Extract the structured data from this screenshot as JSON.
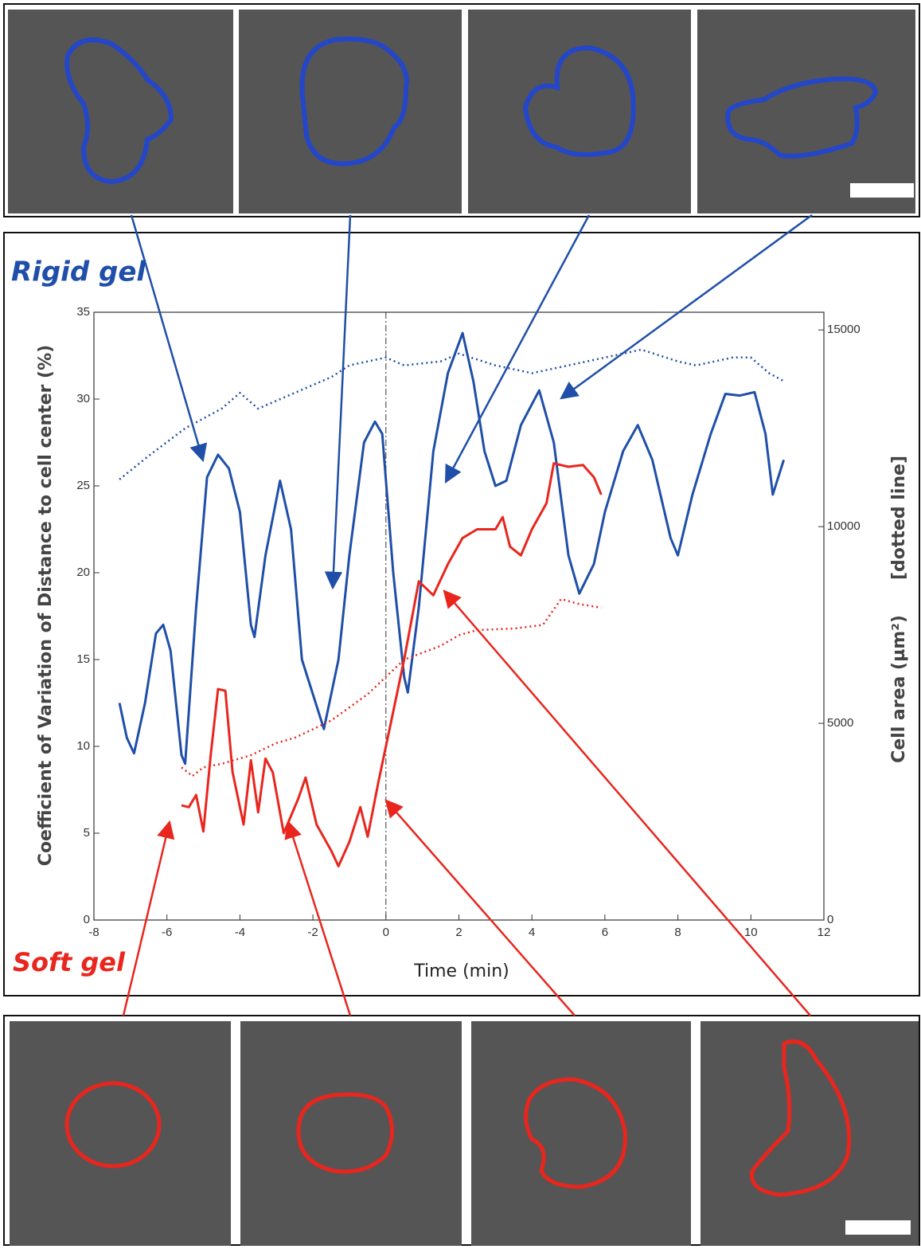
{
  "chart_data": {
    "type": "line",
    "title": "Rigid gel",
    "subtitle": "Soft gel",
    "xlabel": "Time (min)",
    "ylabel": "Coefficient of Variation of Distance to cell center (%)",
    "y2label": "Cell area (µm²)",
    "y2label_note": "[dotted line]",
    "xlim": [
      -8,
      12
    ],
    "xticks": [
      -8,
      -6,
      -4,
      -2,
      0,
      2,
      4,
      6,
      8,
      10,
      12
    ],
    "ylim": [
      0,
      35
    ],
    "yticks": [
      0,
      5,
      10,
      15,
      20,
      25,
      30,
      35
    ],
    "y2lim": [
      0,
      15450
    ],
    "y2ticks": [
      0,
      5000,
      10000,
      15000
    ],
    "reference_x": 0,
    "series": [
      {
        "name": "Rigid gel",
        "color": "#1f4fa8",
        "line_style": "solid",
        "x": [
          -7.3,
          -7.1,
          -6.9,
          -6.6,
          -6.3,
          -6.1,
          -5.9,
          -5.6,
          -5.5,
          -5.2,
          -4.9,
          -4.6,
          -4.3,
          -4.0,
          -3.7,
          -3.6,
          -3.3,
          -2.9,
          -2.6,
          -2.3,
          -1.7,
          -1.3,
          -1.0,
          -0.6,
          -0.3,
          -0.1,
          0.2,
          0.5,
          0.6,
          0.9,
          1.3,
          1.7,
          2.1,
          2.4,
          2.7,
          3.0,
          3.3,
          3.7,
          4.2,
          4.6,
          5.0,
          5.3,
          5.7,
          6.0,
          6.5,
          6.9,
          7.3,
          7.8,
          8.0,
          8.4,
          8.9,
          9.3,
          9.7,
          10.1,
          10.4,
          10.6,
          10.9
        ],
        "values": [
          12.5,
          10.5,
          9.6,
          12.5,
          16.5,
          17,
          15.5,
          9.5,
          9,
          18,
          25.5,
          26.8,
          26,
          23.5,
          17,
          16.3,
          21,
          25.3,
          22.5,
          15,
          11,
          15,
          21,
          27.5,
          28.7,
          28,
          20,
          14,
          13.1,
          18,
          27,
          31.5,
          33.8,
          31,
          27,
          25,
          25.3,
          28.5,
          30.5,
          27.5,
          21,
          18.8,
          20.5,
          23.5,
          27,
          28.5,
          26.5,
          22,
          21,
          24.5,
          28,
          30.3,
          30.2,
          30.4,
          28,
          24.5,
          26.5
        ]
      },
      {
        "name": "Rigid gel",
        "color": "#1f4fa8",
        "line_style": "dotted",
        "axis": "y2",
        "x": [
          -7.3,
          -6.5,
          -5.5,
          -4.5,
          -4.0,
          -3.5,
          -2.5,
          -1.5,
          -1.0,
          0,
          0.5,
          1.5,
          2.0,
          3.0,
          4.0,
          5.0,
          6.5,
          7.0,
          8.0,
          8.5,
          9.5,
          10.0,
          10.5,
          10.9
        ],
        "values": [
          11200,
          11800,
          12500,
          13000,
          13400,
          13000,
          13400,
          13800,
          14100,
          14300,
          14100,
          14200,
          14400,
          14100,
          13900,
          14100,
          14400,
          14500,
          14200,
          14100,
          14300,
          14300,
          13900,
          13700
        ]
      },
      {
        "name": "Soft gel",
        "color": "#e8261e",
        "line_style": "solid",
        "x": [
          -5.6,
          -5.4,
          -5.2,
          -5.0,
          -4.8,
          -4.6,
          -4.4,
          -4.2,
          -3.9,
          -3.7,
          -3.5,
          -3.3,
          -3.1,
          -2.8,
          -2.4,
          -2.2,
          -1.9,
          -1.5,
          -1.3,
          -1.0,
          -0.7,
          -0.5,
          -0.2,
          0.1,
          0.5,
          0.9,
          1.3,
          1.7,
          2.1,
          2.5,
          3.0,
          3.2,
          3.4,
          3.7,
          4.0,
          4.4,
          4.6,
          5.0,
          5.4,
          5.7,
          5.9
        ],
        "values": [
          6.6,
          6.5,
          7.2,
          5.1,
          9.5,
          13.3,
          13.2,
          8.5,
          5.5,
          9.2,
          6.2,
          9.3,
          8.5,
          5,
          7,
          8.2,
          5.5,
          4,
          3.1,
          4.5,
          6.5,
          4.8,
          8,
          11,
          15,
          19.5,
          18.7,
          20.5,
          22,
          22.5,
          22.5,
          23.2,
          21.5,
          21,
          22.5,
          24,
          26.3,
          26.1,
          26.2,
          25.5,
          24.5
        ]
      },
      {
        "name": "Soft gel",
        "color": "#e8261e",
        "line_style": "dotted",
        "axis": "y2",
        "x": [
          -5.6,
          -5.3,
          -5.0,
          -4.5,
          -3.7,
          -3.0,
          -2.5,
          -1.5,
          -0.5,
          0,
          0.5,
          1.5,
          2.0,
          2.5,
          3.5,
          4.3,
          4.8,
          5.3,
          5.9
        ],
        "values": [
          3880,
          3660,
          3880,
          3970,
          4190,
          4500,
          4630,
          5070,
          5740,
          6180,
          6620,
          6970,
          7240,
          7370,
          7410,
          7500,
          8160,
          8030,
          7940
        ]
      }
    ]
  }
}
